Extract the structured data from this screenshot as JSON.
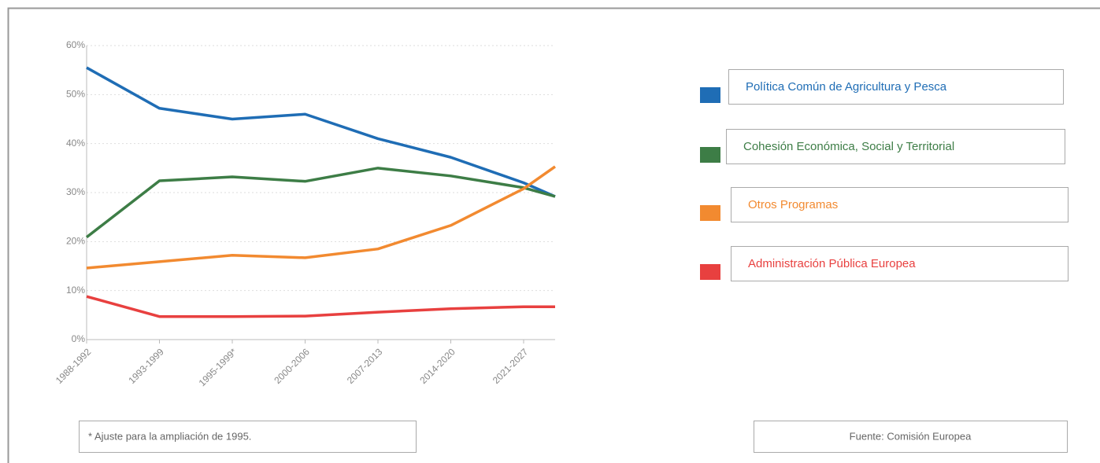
{
  "chart_data": {
    "type": "line",
    "categories": [
      "1988-1992",
      "1993-1999",
      "1995-1999*",
      "2000-2006",
      "2007-2013",
      "2014-2020",
      "2021-2027",
      null
    ],
    "series": [
      {
        "name": "Política Común de Agricultura y Pesca",
        "color": "#1f6db5",
        "values": [
          55.5,
          47.2,
          45,
          46,
          41,
          37.2,
          32,
          29.2
        ]
      },
      {
        "name": "Cohesión Económica, Social y Territorial",
        "color": "#3d7d46",
        "values": [
          20.9,
          32.4,
          33.2,
          32.3,
          35,
          33.4,
          31,
          29.2
        ]
      },
      {
        "name": "Otros Programas",
        "color": "#f28a30",
        "values": [
          14.6,
          15.9,
          17.2,
          16.7,
          18.5,
          23.3,
          30.8,
          35.3
        ]
      },
      {
        "name": "Administración Pública Europea",
        "color": "#e8403f",
        "values": [
          8.8,
          4.7,
          4.7,
          4.8,
          5.6,
          6.3,
          6.7,
          6.7
        ]
      }
    ],
    "ylim": [
      0,
      60
    ],
    "yticks": [
      {
        "value": 0,
        "label": "0%"
      },
      {
        "value": 10,
        "label": "10%"
      },
      {
        "value": 20,
        "label": "20%"
      },
      {
        "value": 30,
        "label": "30%"
      },
      {
        "value": 40,
        "label": "40%"
      },
      {
        "value": 50,
        "label": "50%"
      },
      {
        "value": 60,
        "label": "60%"
      }
    ],
    "grid": true,
    "notes": [
      "* Ajuste para la ampliación de 1995.",
      "Fuente: Comisión Europea"
    ]
  }
}
